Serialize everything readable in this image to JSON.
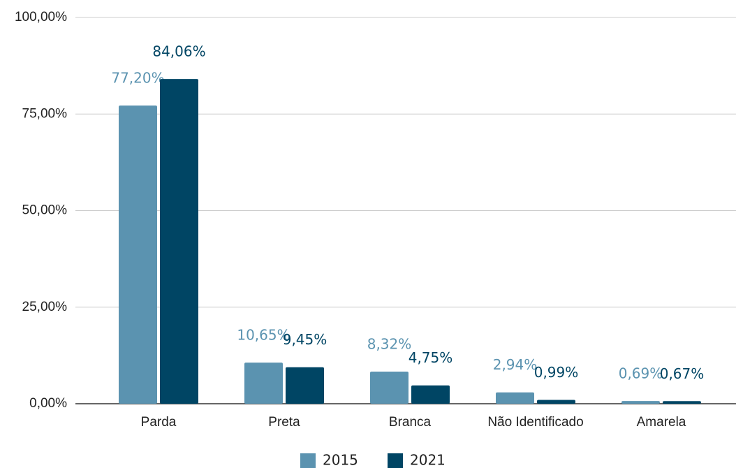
{
  "chart_data": {
    "type": "bar",
    "categories": [
      "Parda",
      "Preta",
      "Branca",
      "Não Identificado",
      "Amarela"
    ],
    "series": [
      {
        "name": "2015",
        "color": "#5b93b0",
        "values": [
          77.2,
          10.65,
          8.32,
          2.94,
          0.69
        ],
        "value_labels": [
          "77,20%",
          "10,65%",
          "8,32%",
          "2,94%",
          "0,69%"
        ]
      },
      {
        "name": "2021",
        "color": "#004564",
        "values": [
          84.06,
          9.45,
          4.75,
          0.99,
          0.67
        ],
        "value_labels": [
          "84,06%",
          "9,45%",
          "4,75%",
          "0,99%",
          "0,67%"
        ]
      }
    ],
    "ylim": [
      0,
      100
    ],
    "yticks": [
      {
        "value": 0,
        "label": "0,00%"
      },
      {
        "value": 25,
        "label": "25,00%"
      },
      {
        "value": 50,
        "label": "50,00%"
      },
      {
        "value": 75,
        "label": "75,00%"
      },
      {
        "value": 100,
        "label": "100,00%"
      }
    ],
    "grid": true,
    "legend": "bottom"
  }
}
